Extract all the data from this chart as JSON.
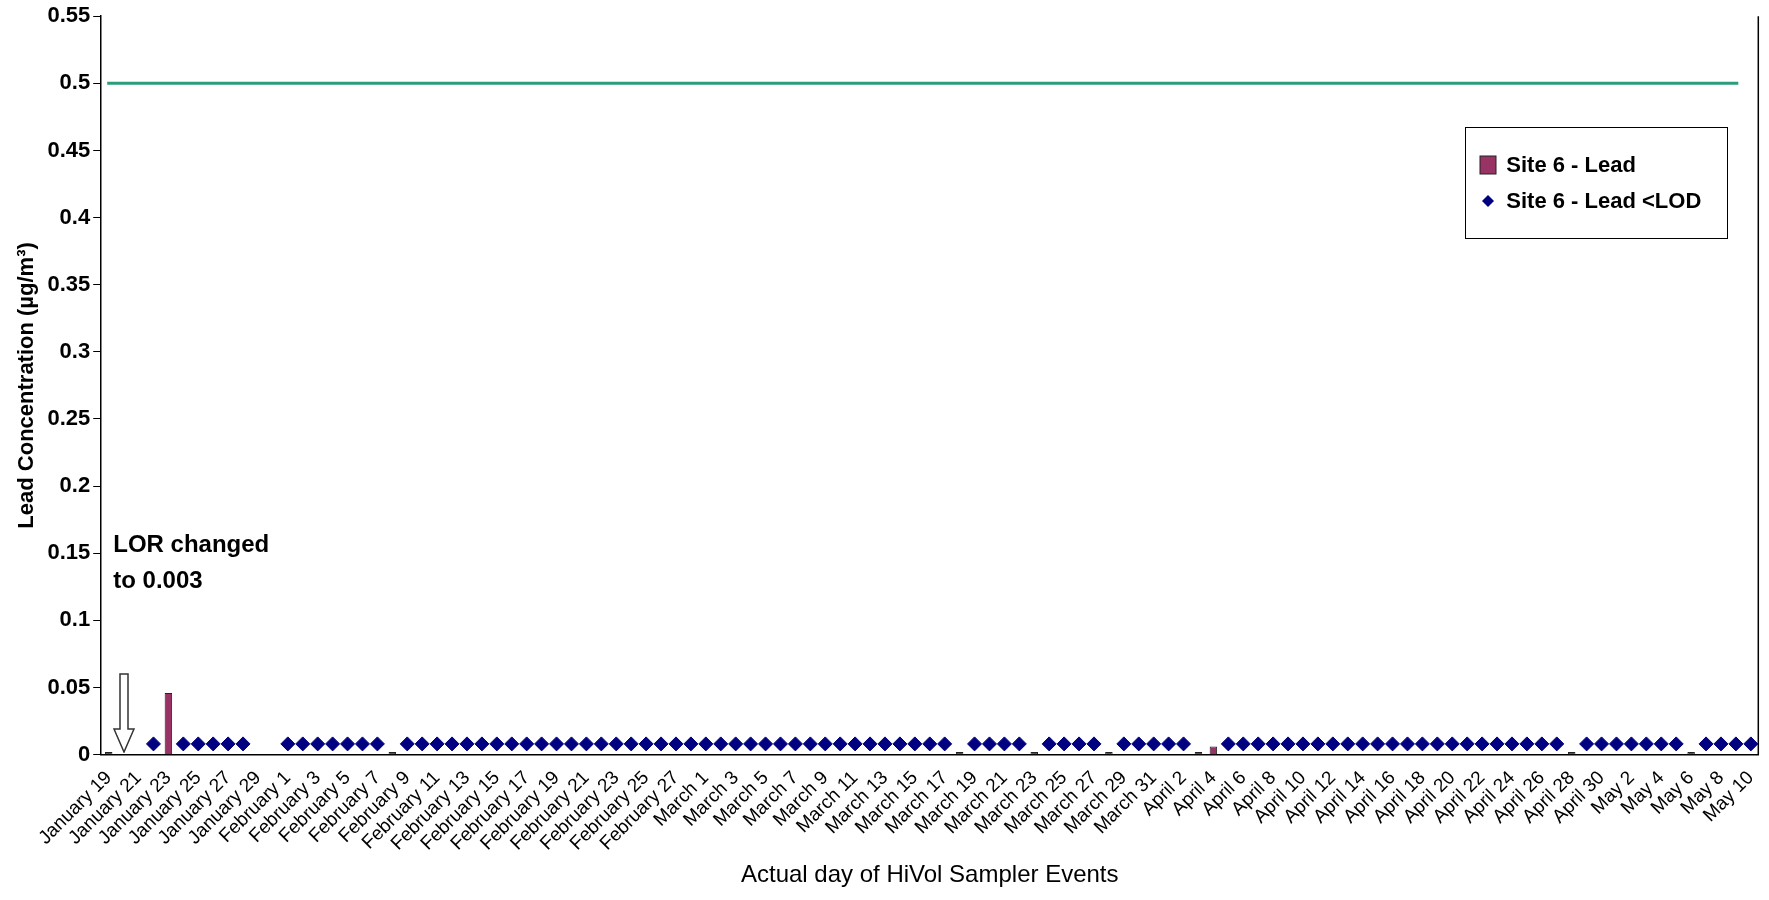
{
  "chart_data": {
    "type": "bar",
    "xlabel": "Actual day of HiVol Sampler Events",
    "ylabel": "Lead Concentration (µg/m³)",
    "categories": [
      "January 19",
      null,
      "January 21",
      null,
      "January 23",
      null,
      "January 25",
      null,
      "January 27",
      null,
      "January 29",
      null,
      "February 1",
      null,
      "February 3",
      null,
      "February 5",
      null,
      "February 7",
      null,
      "February 9",
      null,
      "February 11",
      null,
      "February 13",
      null,
      "February 15",
      null,
      "February 17",
      null,
      "February 19",
      null,
      "February 21",
      null,
      "February 23",
      null,
      "February 25",
      null,
      "February 27",
      null,
      "March 1",
      null,
      "March 3",
      null,
      "March 5",
      null,
      "March 7",
      null,
      "March 9",
      null,
      "March 11",
      null,
      "March 13",
      null,
      "March 15",
      null,
      "March 17",
      null,
      "March 19",
      null,
      "March 21",
      null,
      "March 23",
      null,
      "March 25",
      null,
      "March 27",
      null,
      "March 29",
      null,
      "March 31",
      null,
      "April 2",
      null,
      "April 4",
      null,
      "April 6",
      null,
      "April 8",
      null,
      "April 10",
      null,
      "April 12",
      null,
      "April 14",
      null,
      "April 16",
      null,
      "April 18",
      null,
      "April 20",
      null,
      "April 22",
      null,
      "April 24",
      null,
      "April 26",
      null,
      "April 28",
      null,
      "April 30",
      null,
      "May 2",
      null,
      "May 4",
      null,
      "May 6",
      null,
      "May 8",
      null,
      "May 10"
    ],
    "series": [
      {
        "name": "Site 6 - Lead",
        "color": "#993366",
        "values": [
          0.002,
          null,
          null,
          null,
          0.046,
          null,
          null,
          null,
          null,
          null,
          null,
          null,
          null,
          null,
          null,
          null,
          null,
          null,
          null,
          0.002,
          null,
          null,
          null,
          null,
          null,
          null,
          null,
          null,
          null,
          null,
          null,
          null,
          null,
          null,
          null,
          null,
          null,
          null,
          null,
          null,
          null,
          null,
          null,
          null,
          null,
          null,
          null,
          null,
          null,
          null,
          null,
          null,
          null,
          null,
          null,
          null,
          null,
          0.002,
          null,
          null,
          null,
          null,
          0.002,
          null,
          null,
          null,
          null,
          0.002,
          null,
          null,
          null,
          null,
          null,
          0.002,
          0.006,
          null,
          null,
          null,
          null,
          null,
          null,
          null,
          null,
          null,
          null,
          null,
          null,
          null,
          null,
          null,
          null,
          null,
          null,
          null,
          null,
          null,
          null,
          null,
          0.002,
          null,
          null,
          null,
          null,
          null,
          null,
          null,
          0.002,
          null,
          null,
          null,
          null
        ]
      },
      {
        "name": "Site 6 - Lead <LOD",
        "type": "scatter",
        "color": "#000080",
        "values": [
          null,
          null,
          null,
          0.008,
          null,
          0.008,
          0.008,
          0.008,
          0.008,
          0.008,
          null,
          null,
          0.008,
          0.008,
          0.008,
          0.008,
          0.008,
          0.008,
          0.008,
          null,
          0.008,
          0.008,
          0.008,
          0.008,
          0.008,
          0.008,
          0.008,
          0.008,
          0.008,
          0.008,
          0.008,
          0.008,
          0.008,
          0.008,
          0.008,
          0.008,
          0.008,
          0.008,
          0.008,
          0.008,
          0.008,
          0.008,
          0.008,
          0.008,
          0.008,
          0.008,
          0.008,
          0.008,
          0.008,
          0.008,
          0.008,
          0.008,
          0.008,
          0.008,
          0.008,
          0.008,
          0.008,
          null,
          0.008,
          0.008,
          0.008,
          0.008,
          null,
          0.008,
          0.008,
          0.008,
          0.008,
          null,
          0.008,
          0.008,
          0.008,
          0.008,
          0.008,
          null,
          null,
          0.008,
          0.008,
          0.008,
          0.008,
          0.008,
          0.008,
          0.008,
          0.008,
          0.008,
          0.008,
          0.008,
          0.008,
          0.008,
          0.008,
          0.008,
          0.008,
          0.008,
          0.008,
          0.008,
          0.008,
          0.008,
          0.008,
          0.008,
          null,
          0.008,
          0.008,
          0.008,
          0.008,
          0.008,
          0.008,
          0.008,
          null,
          0.008,
          0.008,
          0.008,
          0.008
        ]
      }
    ],
    "ylim": [
      0,
      0.55
    ],
    "yticks": [
      0,
      0.05,
      0.1,
      0.15,
      0.2,
      0.25,
      0.3,
      0.35,
      0.4,
      0.45,
      0.5,
      0.55
    ],
    "ref_lines": [
      {
        "axis": "y",
        "value": 0.5,
        "color": "#2a9d7c"
      }
    ],
    "annotations": [
      "LOR changed to 0.003"
    ],
    "legend": "top right",
    "marker": "diamond",
    "grid": false
  }
}
